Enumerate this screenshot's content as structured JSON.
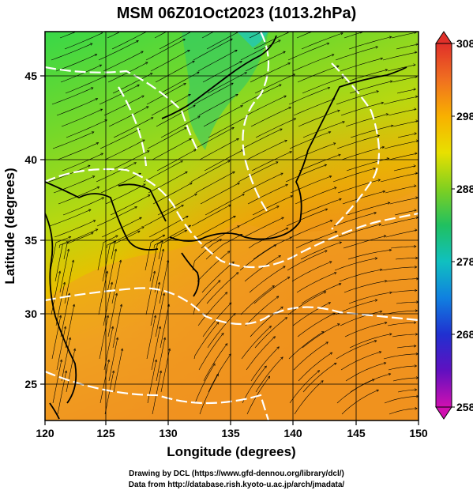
{
  "title": "MSM 06Z01Oct2023 (1013.2hPa)",
  "xlabel": "Longitude (degrees)",
  "ylabel": "Latitude  (degrees)",
  "x_ticks": [
    "120",
    "125",
    "130",
    "135",
    "140",
    "145",
    "150"
  ],
  "y_ticks": [
    "25",
    "30",
    "35",
    "40",
    "45"
  ],
  "colorbar": {
    "ticks": [
      "308",
      "298",
      "288",
      "278",
      "268",
      "258"
    ],
    "min": 258,
    "max": 308
  },
  "credits": {
    "line1": "Drawing by DCL (https://www.gfd-dennou.org/library/dcl/)",
    "line2": "Data from http://database.rish.kyoto-u.ac.jp/arch/jmadata/"
  },
  "map": {
    "lon_range": [
      120,
      150
    ],
    "lat_range": [
      22.4,
      47.6
    ],
    "field": "temperature (K) with streamlines and white isotherm contours",
    "colors": {
      "warm": "#f0a020",
      "mid": "#c8d800",
      "cool": "#60d020",
      "contour": "#ffffff",
      "coast": "#000000"
    }
  }
}
